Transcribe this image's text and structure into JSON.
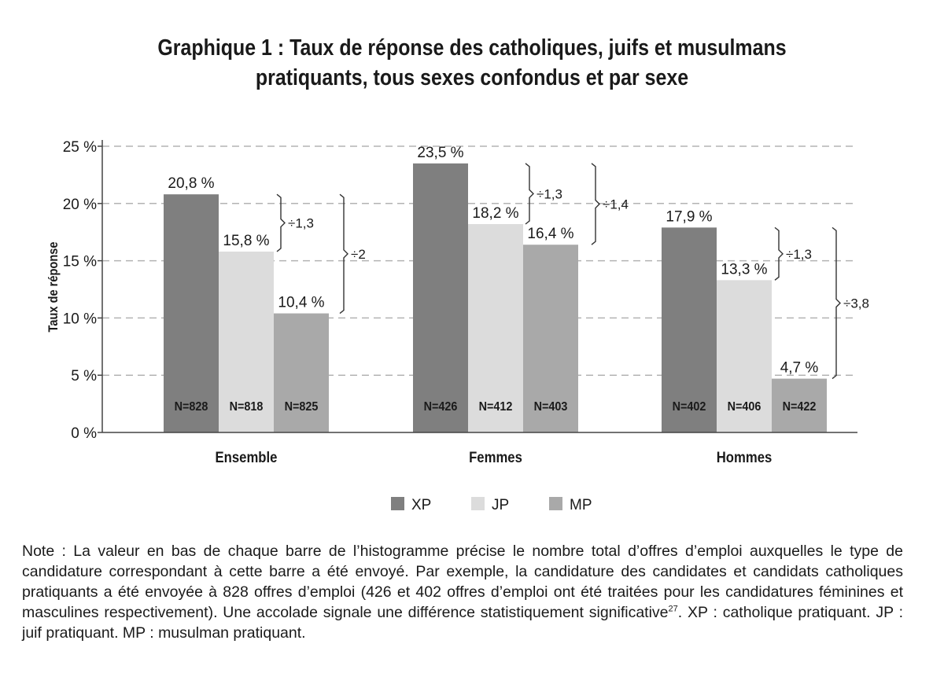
{
  "chart_data": {
    "type": "bar",
    "title_line1": "Graphique 1 : Taux de réponse des catholiques, juifs et musulmans",
    "title_line2": "pratiquants, tous sexes confondus et par sexe",
    "ylabel": "Taux de réponse",
    "xlabel": "",
    "ylim": [
      0,
      25
    ],
    "yticks": [
      "0 %",
      "5 %",
      "10 %",
      "15 %",
      "20 %",
      "25 %"
    ],
    "grid": "horizontal dashed",
    "legend_position": "bottom",
    "categories": [
      "Ensemble",
      "Femmes",
      "Hommes"
    ],
    "series": [
      {
        "name": "XP",
        "color": "#7f7f7f",
        "values": [
          20.8,
          23.5,
          17.9
        ],
        "labels": [
          "20,8 %",
          "23,5 %",
          "17,9 %"
        ],
        "n": [
          "N=828",
          "N=426",
          "N=402"
        ]
      },
      {
        "name": "JP",
        "color": "#dcdcdc",
        "values": [
          15.8,
          18.2,
          13.3
        ],
        "labels": [
          "15,8 %",
          "18,2 %",
          "13,3 %"
        ],
        "n": [
          "N=818",
          "N=412",
          "N=406"
        ]
      },
      {
        "name": "MP",
        "color": "#a9a9a9",
        "values": [
          10.4,
          16.4,
          4.7
        ],
        "labels": [
          "10,4 %",
          "16,4 %",
          "4,7 %"
        ],
        "n": [
          "N=825",
          "N=403",
          "N=422"
        ]
      }
    ],
    "annotations": [
      {
        "group": 0,
        "from": 0,
        "to": 1,
        "text": "÷1,3"
      },
      {
        "group": 0,
        "from": 0,
        "to": 2,
        "text": "÷2"
      },
      {
        "group": 1,
        "from": 0,
        "to": 1,
        "text": "÷1,3"
      },
      {
        "group": 1,
        "from": 0,
        "to": 2,
        "text": "÷1,4"
      },
      {
        "group": 2,
        "from": 0,
        "to": 1,
        "text": "÷1,3"
      },
      {
        "group": 2,
        "from": 0,
        "to": 2,
        "text": "÷3,8"
      }
    ]
  },
  "note": {
    "text_before": "Note : La valeur en bas de chaque barre de l’histogramme précise le nombre total d’offres d’emploi auxquelles le type de candidature correspondant à cette barre a été envoyé. Par exemple, la candidature des candidates et candidats catholiques pratiquants a été envoyée à 828 offres d’emploi (426 et 402 offres d’emploi ont été traitées pour les candidatures féminines et masculines respectivement). Une accolade signale une différence statistiquement significative",
    "footnote": "27",
    "text_after": ". XP : catholique pratiquant. JP : juif pratiquant. MP : musulman pratiquant."
  }
}
